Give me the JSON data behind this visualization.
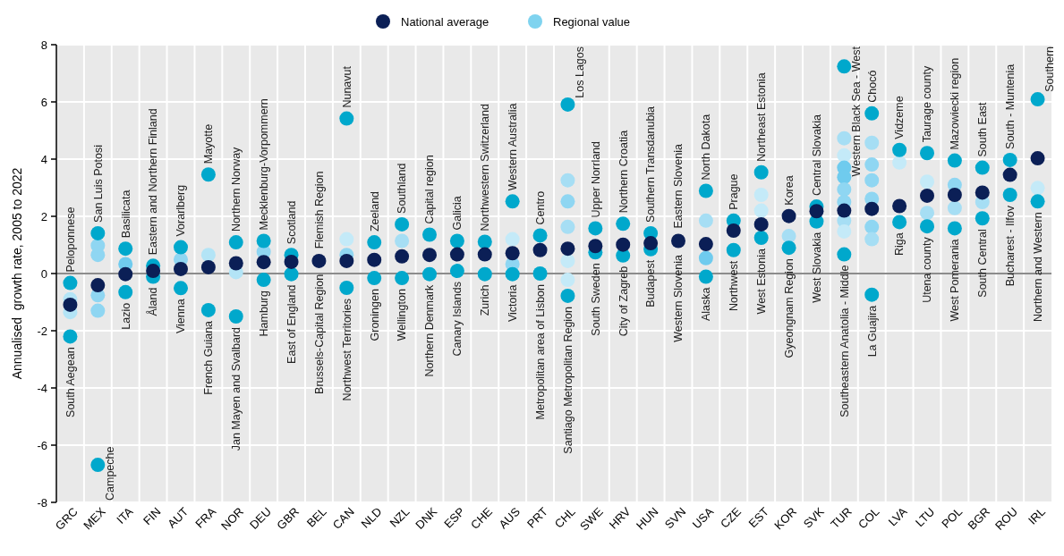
{
  "chart_data": {
    "type": "scatter",
    "ylabel": "Annualised  growth rate, 2005 to 2022",
    "categories": [
      "GRC",
      "MEX",
      "ITA",
      "FIN",
      "AUT",
      "FRA",
      "NOR",
      "DEU",
      "GBR",
      "BEL",
      "CAN",
      "NLD",
      "NZL",
      "DNK",
      "ESP",
      "CHE",
      "AUS",
      "PRT",
      "CHL",
      "SWE",
      "HRV",
      "HUN",
      "SVN",
      "USA",
      "CZE",
      "EST",
      "KOR",
      "SVK",
      "TUR",
      "COL",
      "LVA",
      "LTU",
      "POL",
      "BGR",
      "ROU",
      "IRL"
    ],
    "series": [
      {
        "name": "Regional value",
        "color": "#7fd3ef",
        "x": [
          "GRC",
          "GRC",
          "GRC",
          "GRC",
          "MEX",
          "MEX",
          "MEX",
          "MEX",
          "MEX",
          "MEX",
          "ITA",
          "ITA",
          "ITA",
          "FIN",
          "FIN",
          "AUT",
          "AUT",
          "AUT",
          "FRA",
          "FRA",
          "FRA",
          "NOR",
          "NOR",
          "NOR",
          "DEU",
          "DEU",
          "DEU",
          "GBR",
          "GBR",
          "CAN",
          "CAN",
          "CAN",
          "CAN",
          "NLD",
          "NLD",
          "NZL",
          "NZL",
          "NZL",
          "DNK",
          "DNK",
          "ESP",
          "ESP",
          "CHE",
          "CHE",
          "AUS",
          "AUS",
          "AUS",
          "AUS",
          "PRT",
          "PRT",
          "CHL",
          "CHL",
          "CHL",
          "CHL",
          "CHL",
          "CHL",
          "CHL",
          "SWE",
          "SWE",
          "HRV",
          "HRV",
          "HUN",
          "HUN",
          "USA",
          "USA",
          "USA",
          "USA",
          "CZE",
          "CZE",
          "EST",
          "EST",
          "EST",
          "EST",
          "KOR",
          "KOR",
          "SVK",
          "SVK",
          "TUR",
          "TUR",
          "TUR",
          "TUR",
          "TUR",
          "TUR",
          "TUR",
          "TUR",
          "TUR",
          "TUR",
          "COL",
          "COL",
          "COL",
          "COL",
          "COL",
          "COL",
          "COL",
          "COL",
          "LVA",
          "LVA",
          "LVA",
          "LTU",
          "LTU",
          "LTU",
          "LTU",
          "POL",
          "POL",
          "POL",
          "POL",
          "BGR",
          "BGR",
          "BGR",
          "ROU",
          "ROU",
          "IRL",
          "IRL",
          "IRL"
        ],
        "values": [
          -0.9,
          -1.35,
          -0.33,
          -2.2,
          0.65,
          0.98,
          -1.3,
          -0.76,
          1.41,
          -6.69,
          0.33,
          0.87,
          -0.65,
          0.27,
          -0.11,
          0.49,
          0.92,
          -0.51,
          0.65,
          3.46,
          -1.28,
          0.05,
          1.09,
          -1.5,
          0.76,
          1.14,
          -0.22,
          0.65,
          -0.02,
          1.2,
          0.65,
          5.42,
          -0.5,
          1.09,
          -0.16,
          1.14,
          1.72,
          -0.16,
          1.36,
          -0.02,
          1.14,
          0.09,
          1.11,
          -0.02,
          1.2,
          0.33,
          2.52,
          -0.02,
          1.33,
          0,
          3.26,
          2.52,
          1.63,
          0.44,
          -0.22,
          5.91,
          -0.78,
          1.58,
          0.74,
          1.74,
          0.63,
          1.41,
          0.85,
          1.85,
          0.54,
          2.89,
          -0.11,
          1.85,
          0.82,
          2.75,
          2.2,
          3.54,
          1.25,
          1.31,
          0.9,
          2.34,
          1.82,
          4.73,
          4.13,
          3.7,
          3.37,
          2.94,
          2.5,
          1.85,
          1.47,
          7.24,
          0.67,
          4.57,
          3.81,
          3.26,
          2.61,
          1.63,
          1.2,
          5.6,
          -0.74,
          3.88,
          4.32,
          1.8,
          3.21,
          2.12,
          4.21,
          1.65,
          3.1,
          2.29,
          3.95,
          1.58,
          2.5,
          3.7,
          1.93,
          3.97,
          2.75,
          2.99,
          6.09,
          2.52
        ],
        "colors": [
          "#b3e4f6",
          "#b3e4f6",
          "#00a8cc",
          "#00a8cc",
          "#8fd6f2",
          "#8fd6f2",
          "#8fd6f2",
          "#8fd6f2",
          "#00a8cc",
          "#00a8cc",
          "#6fcbee",
          "#00a8cc",
          "#00a8cc",
          "#00a8cc",
          "#00a8cc",
          "#8fd6f2",
          "#00a8cc",
          "#00a8cc",
          "#b3e4f6",
          "#00a8cc",
          "#00a8cc",
          "#b3e4f6",
          "#00a8cc",
          "#00a8cc",
          "#8fd6f2",
          "#00a8cc",
          "#00a8cc",
          "#00a8cc",
          "#00a8cc",
          "#c4eaf8",
          "#8fd6f2",
          "#00a8cc",
          "#00a8cc",
          "#00a8cc",
          "#00a8cc",
          "#a6def4",
          "#00a8cc",
          "#00a8cc",
          "#00a8cc",
          "#00a8cc",
          "#00a8cc",
          "#00a8cc",
          "#00a8cc",
          "#00a8cc",
          "#c4eaf8",
          "#8fd6f2",
          "#00a8cc",
          "#00a8cc",
          "#00a8cc",
          "#00a8cc",
          "#a6def4",
          "#8fd6f2",
          "#a6def4",
          "#c4eaf8",
          "#c4eaf8",
          "#00a8cc",
          "#00a8cc",
          "#00a8cc",
          "#00a8cc",
          "#00a8cc",
          "#00a8cc",
          "#00a8cc",
          "#00a8cc",
          "#a6def4",
          "#6fcbee",
          "#00a8cc",
          "#00a8cc",
          "#00a8cc",
          "#00a8cc",
          "#c4eaf8",
          "#c4eaf8",
          "#00a8cc",
          "#00a8cc",
          "#a6def4",
          "#00a8cc",
          "#00a8cc",
          "#00a8cc",
          "#a6def4",
          "#c4eaf8",
          "#6fcbee",
          "#6fcbee",
          "#8fd6f2",
          "#8fd6f2",
          "#a6def4",
          "#c4eaf8",
          "#00a8cc",
          "#00a8cc",
          "#a6def4",
          "#8fd6f2",
          "#8fd6f2",
          "#8fd6f2",
          "#8fd6f2",
          "#a6def4",
          "#00a8cc",
          "#00a8cc",
          "#c4eaf8",
          "#00a8cc",
          "#00a8cc",
          "#c4eaf8",
          "#a6def4",
          "#00a8cc",
          "#00a8cc",
          "#8fd6f2",
          "#a6def4",
          "#00a8cc",
          "#00a8cc",
          "#a6def4",
          "#00a8cc",
          "#00a8cc",
          "#00a8cc",
          "#00a8cc",
          "#c4eaf8",
          "#00a8cc",
          "#00a8cc"
        ]
      },
      {
        "name": "National average",
        "color": "#0b1f56",
        "values": [
          -1.09,
          -0.41,
          -0.02,
          0.09,
          0.16,
          0.22,
          0.36,
          0.4,
          0.41,
          0.44,
          0.44,
          0.48,
          0.6,
          0.65,
          0.67,
          0.67,
          0.71,
          0.82,
          0.87,
          0.96,
          1.01,
          1.06,
          1.14,
          1.03,
          1.5,
          1.72,
          2.01,
          2.18,
          2.2,
          2.26,
          2.36,
          2.72,
          2.75,
          2.83,
          3.45,
          4.03
        ]
      }
    ],
    "ylim": [
      -8,
      8
    ],
    "yticks": [
      -8,
      -6,
      -4,
      -2,
      0,
      2,
      4,
      6,
      8
    ],
    "grid": true,
    "legend": "top",
    "marker": "circle",
    "ref_lines": [
      {
        "axis": "y",
        "value": 0,
        "color": "#666666"
      }
    ],
    "annotations": [
      {
        "text": "Peloponnese",
        "x": "GRC",
        "y": -0.33
      },
      {
        "text": "South Aegean",
        "x": "GRC",
        "y": -2.2
      },
      {
        "text": "San Luis Potosi",
        "x": "MEX",
        "y": 1.41
      },
      {
        "text": "Campeche",
        "x": "MEX",
        "y": -6.69
      },
      {
        "text": "Basilicata",
        "x": "ITA",
        "y": 0.87
      },
      {
        "text": "Lazio",
        "x": "ITA",
        "y": -0.65
      },
      {
        "text": "Eastern and Northern Finland",
        "x": "FIN",
        "y": 0.27
      },
      {
        "text": "Åland",
        "x": "FIN",
        "y": -0.11
      },
      {
        "text": "Vorarlberg",
        "x": "AUT",
        "y": 0.92
      },
      {
        "text": "Vienna",
        "x": "AUT",
        "y": -0.51
      },
      {
        "text": "Mayotte",
        "x": "FRA",
        "y": 3.46
      },
      {
        "text": "French Guiana",
        "x": "FRA",
        "y": -1.28
      },
      {
        "text": "Northern Norway",
        "x": "NOR",
        "y": 1.09
      },
      {
        "text": "Jan Mayen and Svalbard",
        "x": "NOR",
        "y": -1.5
      },
      {
        "text": "Mecklenburg-Vorpommern",
        "x": "DEU",
        "y": 1.14
      },
      {
        "text": "Hamburg",
        "x": "DEU",
        "y": -0.22
      },
      {
        "text": "Scotland",
        "x": "GBR",
        "y": 0.65
      },
      {
        "text": "East of England",
        "x": "GBR",
        "y": -0.02
      },
      {
        "text": "Flemish Region",
        "x": "BEL",
        "y": 0.49
      },
      {
        "text": "Brussels-Capital Region",
        "x": "BEL",
        "y": 0.35
      },
      {
        "text": "Nunavut",
        "x": "CAN",
        "y": 5.42
      },
      {
        "text": "Northwest Territories",
        "x": "CAN",
        "y": -0.5
      },
      {
        "text": "Zeeland",
        "x": "NLD",
        "y": 1.09
      },
      {
        "text": "Groningen",
        "x": "NLD",
        "y": -0.16
      },
      {
        "text": "Southland",
        "x": "NZL",
        "y": 1.72
      },
      {
        "text": "Wellington",
        "x": "NZL",
        "y": -0.16
      },
      {
        "text": "Capital region",
        "x": "DNK",
        "y": 1.36
      },
      {
        "text": "Northern Denmark",
        "x": "DNK",
        "y": -0.02
      },
      {
        "text": "Galicia",
        "x": "ESP",
        "y": 1.14
      },
      {
        "text": "Canary Islands",
        "x": "ESP",
        "y": 0.09
      },
      {
        "text": "Northwestern Switzerland",
        "x": "CHE",
        "y": 1.11
      },
      {
        "text": "Zurich",
        "x": "CHE",
        "y": -0.02
      },
      {
        "text": "Western Australia",
        "x": "AUS",
        "y": 2.52
      },
      {
        "text": "Victoria",
        "x": "AUS",
        "y": -0.02
      },
      {
        "text": "Centro",
        "x": "PRT",
        "y": 1.33
      },
      {
        "text": "Metropolitan area of Lisbon",
        "x": "PRT",
        "y": 0
      },
      {
        "text": "Los Lagos",
        "x": "CHL",
        "y": 5.91
      },
      {
        "text": "Santiago Metropolitan Region",
        "x": "CHL",
        "y": -0.78
      },
      {
        "text": "Upper Norrland",
        "x": "SWE",
        "y": 1.58
      },
      {
        "text": "South Sweden",
        "x": "SWE",
        "y": 0.74
      },
      {
        "text": "Northern Croatia",
        "x": "HRV",
        "y": 1.74
      },
      {
        "text": "City of Zagreb",
        "x": "HRV",
        "y": 0.63
      },
      {
        "text": "Southern Transdanubia",
        "x": "HUN",
        "y": 1.41
      },
      {
        "text": "Budapest",
        "x": "HUN",
        "y": 0.85
      },
      {
        "text": "Eastern Slovenia",
        "x": "SVN",
        "y": 1.2
      },
      {
        "text": "Western Slovenia",
        "x": "SVN",
        "y": 1.03
      },
      {
        "text": "North Dakota",
        "x": "USA",
        "y": 2.89
      },
      {
        "text": "Alaska",
        "x": "USA",
        "y": -0.11
      },
      {
        "text": "Prague",
        "x": "CZE",
        "y": 1.85
      },
      {
        "text": "Northwest",
        "x": "CZE",
        "y": 0.82
      },
      {
        "text": "Northeast Estonia",
        "x": "EST",
        "y": 3.54
      },
      {
        "text": "West Estonia",
        "x": "EST",
        "y": 1.25
      },
      {
        "text": "Korea",
        "x": "KOR",
        "y": 2.01
      },
      {
        "text": "Gyeongnam Region",
        "x": "KOR",
        "y": 0.9
      },
      {
        "text": "Central Slovakia",
        "x": "SVK",
        "y": 2.34
      },
      {
        "text": "West Slovakia",
        "x": "SVK",
        "y": 1.82
      },
      {
        "text": "Western Black Sea - West",
        "x": "TUR",
        "y": 7.24
      },
      {
        "text": "Southeastern Anatolia - Middle",
        "x": "TUR",
        "y": 0.67
      },
      {
        "text": "Chocó",
        "x": "COL",
        "y": 5.6
      },
      {
        "text": "La Guajira",
        "x": "COL",
        "y": -0.74
      },
      {
        "text": "Vidzeme",
        "x": "LVA",
        "y": 4.32
      },
      {
        "text": "Riga",
        "x": "LVA",
        "y": 1.8
      },
      {
        "text": "Taurage county",
        "x": "LTU",
        "y": 4.21
      },
      {
        "text": "Utena county",
        "x": "LTU",
        "y": 1.65
      },
      {
        "text": "Mazowiecki region",
        "x": "POL",
        "y": 3.95
      },
      {
        "text": "West Pomerania",
        "x": "POL",
        "y": 1.58
      },
      {
        "text": "South East",
        "x": "BGR",
        "y": 3.7
      },
      {
        "text": "South Central",
        "x": "BGR",
        "y": 1.93
      },
      {
        "text": "South - Muntenia",
        "x": "ROU",
        "y": 3.97
      },
      {
        "text": "Bucharest - Ilfov",
        "x": "ROU",
        "y": 2.75
      },
      {
        "text": "Southern",
        "x": "IRL",
        "y": 6.09
      },
      {
        "text": "Northern and Western",
        "x": "IRL",
        "y": 2.52
      }
    ]
  }
}
